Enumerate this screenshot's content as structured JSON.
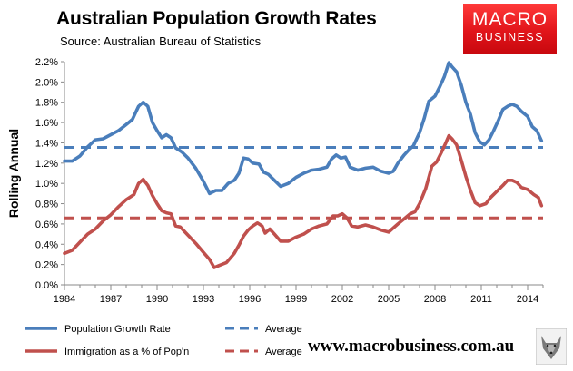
{
  "chart_data": {
    "type": "line",
    "title": "Australian Population Growth Rates",
    "subtitle": "Source: Australian Bureau of Statistics",
    "ylabel": "Rolling Annual",
    "xlabel": "",
    "xlim": [
      1984,
      2015
    ],
    "ylim": [
      0,
      0.022
    ],
    "y_ticks": [
      "0.0%",
      "0.2%",
      "0.4%",
      "0.6%",
      "0.8%",
      "1.0%",
      "1.2%",
      "1.4%",
      "1.6%",
      "1.8%",
      "2.0%",
      "2.2%"
    ],
    "x_ticks": [
      "1984",
      "1987",
      "1990",
      "1993",
      "1996",
      "1999",
      "2002",
      "2005",
      "2008",
      "2011",
      "2014"
    ],
    "grid": false,
    "legend_position": "bottom",
    "series": [
      {
        "name": "Population Growth Rate",
        "color": "#4a7ebb",
        "style": "solid",
        "points": [
          [
            1984.0,
            0.0122
          ],
          [
            1984.5,
            0.0122
          ],
          [
            1985.0,
            0.0127
          ],
          [
            1985.5,
            0.0136
          ],
          [
            1986.0,
            0.0143
          ],
          [
            1986.5,
            0.0144
          ],
          [
            1987.0,
            0.0148
          ],
          [
            1987.5,
            0.0152
          ],
          [
            1988.0,
            0.0158
          ],
          [
            1988.4,
            0.0163
          ],
          [
            1988.8,
            0.0176
          ],
          [
            1989.1,
            0.018
          ],
          [
            1989.4,
            0.0176
          ],
          [
            1989.7,
            0.016
          ],
          [
            1990.0,
            0.0152
          ],
          [
            1990.3,
            0.0145
          ],
          [
            1990.6,
            0.0148
          ],
          [
            1990.9,
            0.0145
          ],
          [
            1991.2,
            0.0135
          ],
          [
            1991.6,
            0.0131
          ],
          [
            1992.0,
            0.0125
          ],
          [
            1992.5,
            0.0115
          ],
          [
            1993.0,
            0.0102
          ],
          [
            1993.4,
            0.009
          ],
          [
            1993.8,
            0.0093
          ],
          [
            1994.2,
            0.0093
          ],
          [
            1994.6,
            0.01
          ],
          [
            1995.0,
            0.0103
          ],
          [
            1995.3,
            0.011
          ],
          [
            1995.6,
            0.0125
          ],
          [
            1995.9,
            0.0124
          ],
          [
            1996.2,
            0.012
          ],
          [
            1996.6,
            0.0119
          ],
          [
            1996.9,
            0.0111
          ],
          [
            1997.2,
            0.0109
          ],
          [
            1997.6,
            0.0103
          ],
          [
            1998.0,
            0.0097
          ],
          [
            1998.5,
            0.01
          ],
          [
            1999.0,
            0.0106
          ],
          [
            1999.5,
            0.011
          ],
          [
            2000.0,
            0.0113
          ],
          [
            2000.5,
            0.0114
          ],
          [
            2001.0,
            0.0116
          ],
          [
            2001.3,
            0.0124
          ],
          [
            2001.6,
            0.0128
          ],
          [
            2001.9,
            0.0125
          ],
          [
            2002.2,
            0.0126
          ],
          [
            2002.5,
            0.0116
          ],
          [
            2003.0,
            0.0113
          ],
          [
            2003.5,
            0.0115
          ],
          [
            2004.0,
            0.0116
          ],
          [
            2004.5,
            0.0112
          ],
          [
            2005.0,
            0.011
          ],
          [
            2005.3,
            0.0112
          ],
          [
            2005.6,
            0.012
          ],
          [
            2006.0,
            0.0128
          ],
          [
            2006.3,
            0.0133
          ],
          [
            2006.6,
            0.0137
          ],
          [
            2007.0,
            0.015
          ],
          [
            2007.3,
            0.0164
          ],
          [
            2007.6,
            0.0181
          ],
          [
            2008.0,
            0.0186
          ],
          [
            2008.3,
            0.0195
          ],
          [
            2008.6,
            0.0205
          ],
          [
            2008.9,
            0.0219
          ],
          [
            2009.1,
            0.0215
          ],
          [
            2009.4,
            0.021
          ],
          [
            2009.7,
            0.0197
          ],
          [
            2010.0,
            0.018
          ],
          [
            2010.3,
            0.0168
          ],
          [
            2010.6,
            0.015
          ],
          [
            2010.9,
            0.0141
          ],
          [
            2011.2,
            0.0138
          ],
          [
            2011.5,
            0.0143
          ],
          [
            2011.8,
            0.0152
          ],
          [
            2012.1,
            0.0162
          ],
          [
            2012.4,
            0.0173
          ],
          [
            2012.7,
            0.0176
          ],
          [
            2013.0,
            0.0178
          ],
          [
            2013.3,
            0.0176
          ],
          [
            2013.6,
            0.0171
          ],
          [
            2014.0,
            0.0166
          ],
          [
            2014.3,
            0.0156
          ],
          [
            2014.6,
            0.0152
          ],
          [
            2014.9,
            0.0142
          ]
        ]
      },
      {
        "name": "Average",
        "color": "#4a7ebb",
        "style": "dashed",
        "points": [
          [
            1984.0,
            0.01355
          ],
          [
            2015.0,
            0.01355
          ]
        ]
      },
      {
        "name": "Immigration as a % of Pop'n",
        "color": "#c0504d",
        "style": "solid",
        "points": [
          [
            1984.0,
            0.0031
          ],
          [
            1984.5,
            0.0034
          ],
          [
            1985.0,
            0.0042
          ],
          [
            1985.5,
            0.005
          ],
          [
            1986.0,
            0.0055
          ],
          [
            1986.5,
            0.0063
          ],
          [
            1987.0,
            0.0069
          ],
          [
            1987.5,
            0.0077
          ],
          [
            1988.0,
            0.0084
          ],
          [
            1988.5,
            0.0089
          ],
          [
            1988.8,
            0.01
          ],
          [
            1989.1,
            0.0104
          ],
          [
            1989.4,
            0.0098
          ],
          [
            1989.7,
            0.0088
          ],
          [
            1990.0,
            0.008
          ],
          [
            1990.3,
            0.0073
          ],
          [
            1990.6,
            0.0071
          ],
          [
            1990.9,
            0.007
          ],
          [
            1991.2,
            0.0058
          ],
          [
            1991.5,
            0.0057
          ],
          [
            1992.0,
            0.0049
          ],
          [
            1992.5,
            0.0041
          ],
          [
            1993.0,
            0.0032
          ],
          [
            1993.4,
            0.0025
          ],
          [
            1993.7,
            0.0017
          ],
          [
            1994.0,
            0.0019
          ],
          [
            1994.5,
            0.0022
          ],
          [
            1995.0,
            0.0031
          ],
          [
            1995.3,
            0.0039
          ],
          [
            1995.6,
            0.0048
          ],
          [
            1995.9,
            0.0054
          ],
          [
            1996.2,
            0.0058
          ],
          [
            1996.5,
            0.0061
          ],
          [
            1996.8,
            0.0058
          ],
          [
            1997.0,
            0.0051
          ],
          [
            1997.3,
            0.0055
          ],
          [
            1997.6,
            0.005
          ],
          [
            1998.0,
            0.0043
          ],
          [
            1998.5,
            0.0043
          ],
          [
            1999.0,
            0.0047
          ],
          [
            1999.5,
            0.005
          ],
          [
            2000.0,
            0.0055
          ],
          [
            2000.5,
            0.0058
          ],
          [
            2001.0,
            0.006
          ],
          [
            2001.4,
            0.0068
          ],
          [
            2001.7,
            0.0068
          ],
          [
            2002.0,
            0.007
          ],
          [
            2002.3,
            0.0066
          ],
          [
            2002.6,
            0.0058
          ],
          [
            2003.0,
            0.0057
          ],
          [
            2003.5,
            0.0059
          ],
          [
            2004.0,
            0.0057
          ],
          [
            2004.5,
            0.0054
          ],
          [
            2005.0,
            0.0052
          ],
          [
            2005.3,
            0.0056
          ],
          [
            2005.6,
            0.006
          ],
          [
            2006.0,
            0.0065
          ],
          [
            2006.4,
            0.007
          ],
          [
            2006.7,
            0.0072
          ],
          [
            2007.0,
            0.008
          ],
          [
            2007.4,
            0.0095
          ],
          [
            2007.8,
            0.0117
          ],
          [
            2008.1,
            0.0121
          ],
          [
            2008.4,
            0.013
          ],
          [
            2008.7,
            0.014
          ],
          [
            2008.9,
            0.0147
          ],
          [
            2009.1,
            0.0144
          ],
          [
            2009.4,
            0.0138
          ],
          [
            2009.7,
            0.0123
          ],
          [
            2010.0,
            0.0107
          ],
          [
            2010.3,
            0.0093
          ],
          [
            2010.6,
            0.0081
          ],
          [
            2010.9,
            0.0078
          ],
          [
            2011.3,
            0.008
          ],
          [
            2011.6,
            0.0086
          ],
          [
            2012.0,
            0.0092
          ],
          [
            2012.4,
            0.0098
          ],
          [
            2012.7,
            0.0103
          ],
          [
            2013.0,
            0.0103
          ],
          [
            2013.3,
            0.0101
          ],
          [
            2013.6,
            0.0096
          ],
          [
            2014.0,
            0.0094
          ],
          [
            2014.4,
            0.0089
          ],
          [
            2014.7,
            0.0086
          ],
          [
            2014.9,
            0.0078
          ]
        ]
      },
      {
        "name": "Average",
        "color": "#c0504d",
        "style": "dashed",
        "points": [
          [
            1984.0,
            0.0066
          ],
          [
            2015.0,
            0.0066
          ]
        ]
      }
    ]
  },
  "branding": {
    "logo_line1": "MACRO",
    "logo_line2": "BUSINESS",
    "website": "www.macrobusiness.com.au"
  }
}
